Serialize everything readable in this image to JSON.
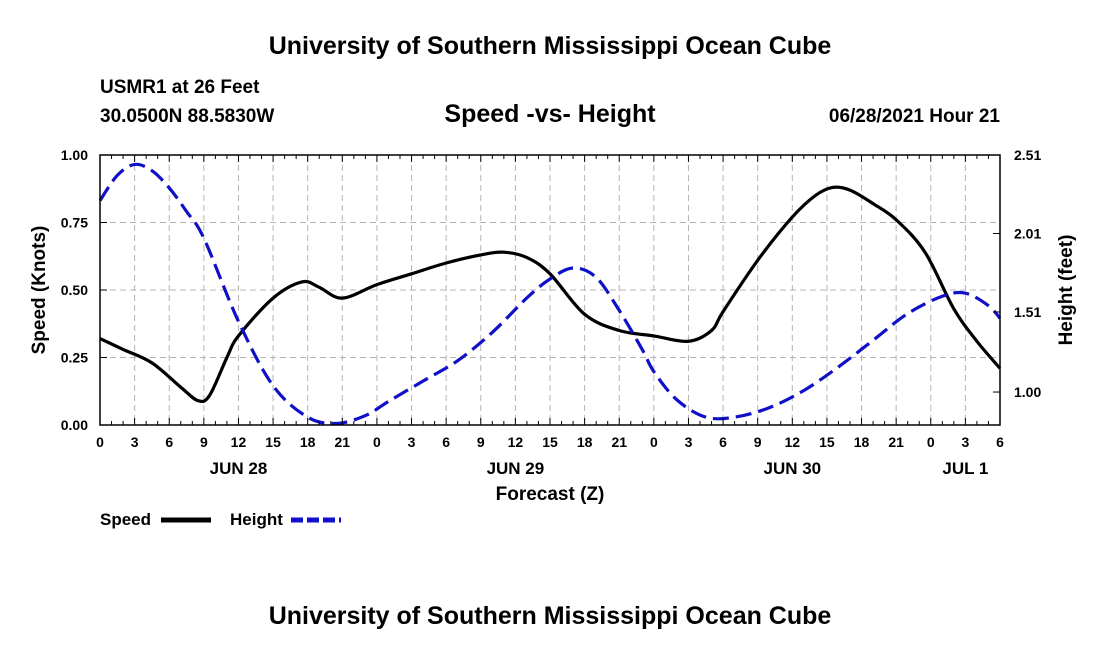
{
  "header": {
    "title": "University of Southern Mississippi Ocean Cube",
    "station": "USMR1 at 26 Feet",
    "coords": "30.0500N  88.5830W",
    "plot_title": "Speed -vs- Height",
    "datetime": "06/28/2021 Hour 21"
  },
  "footer": {
    "title": "University of Southern Mississippi Ocean Cube"
  },
  "colors": {
    "speed": "#000000",
    "height": "#1010c8",
    "grid": "#b4b4b4"
  },
  "chart_data": {
    "type": "line",
    "title": "Speed -vs- Height",
    "xlabel": "Forecast (Z)",
    "ylabel": "Speed (Knots)",
    "y2label": "Height (feet)",
    "x_unit": "hours from JUN 28 00Z",
    "xlim": [
      0,
      78
    ],
    "ylim": [
      0,
      1
    ],
    "y2lim": [
      0.79,
      2.51
    ],
    "x_ticks": [
      0,
      3,
      6,
      9,
      12,
      15,
      18,
      21,
      24,
      27,
      30,
      33,
      36,
      39,
      42,
      45,
      48,
      51,
      54,
      57,
      60,
      63,
      66,
      69,
      72,
      75,
      78
    ],
    "x_tick_labels": [
      "0",
      "3",
      "6",
      "9",
      "12",
      "15",
      "18",
      "21",
      "0",
      "3",
      "6",
      "9",
      "12",
      "15",
      "18",
      "21",
      "0",
      "3",
      "6",
      "9",
      "12",
      "15",
      "18",
      "21",
      "0",
      "3",
      "6"
    ],
    "y_ticks": [
      0,
      0.25,
      0.5,
      0.75,
      1
    ],
    "y_tick_labels": [
      "0.00",
      "0.25",
      "0.50",
      "0.75",
      "1.00"
    ],
    "y2_ticks": [
      1.0,
      1.51,
      2.01,
      2.51
    ],
    "y2_tick_labels": [
      "1.00",
      "1.51",
      "2.01",
      "2.51"
    ],
    "day_labels": [
      {
        "hour": 12,
        "label": "JUN 28"
      },
      {
        "hour": 36,
        "label": "JUN 29"
      },
      {
        "hour": 60,
        "label": "JUN 30"
      },
      {
        "hour": 75,
        "label": "JUL 1"
      }
    ],
    "grid": true,
    "legend_position": "bottom-left",
    "series": [
      {
        "name": "Speed",
        "axis": "left",
        "style": "solid",
        "x": [
          0,
          2,
          4.5,
          7,
          8.5,
          9.5,
          11,
          12,
          15,
          17.5,
          19,
          21,
          24,
          27,
          30,
          33,
          35,
          37,
          39,
          42,
          45,
          48,
          51,
          53,
          54,
          57,
          60,
          62,
          63.5,
          65,
          67,
          69,
          71.5,
          74,
          76,
          78
        ],
        "values": [
          0.32,
          0.28,
          0.23,
          0.14,
          0.09,
          0.11,
          0.25,
          0.33,
          0.47,
          0.53,
          0.51,
          0.47,
          0.52,
          0.56,
          0.6,
          0.63,
          0.64,
          0.62,
          0.56,
          0.41,
          0.35,
          0.33,
          0.31,
          0.35,
          0.42,
          0.61,
          0.77,
          0.85,
          0.88,
          0.87,
          0.82,
          0.76,
          0.64,
          0.43,
          0.31,
          0.21
        ]
      },
      {
        "name": "Height",
        "axis": "right",
        "style": "dashed",
        "x": [
          0,
          1.5,
          3,
          4.5,
          6,
          7.5,
          9,
          12,
          15,
          18,
          20.5,
          23,
          25,
          28,
          31,
          34,
          37,
          39,
          41,
          43,
          45,
          47,
          48,
          50,
          52.5,
          55,
          58,
          61,
          64,
          67,
          70,
          73,
          75,
          77,
          78
        ],
        "values": [
          2.22,
          2.38,
          2.45,
          2.41,
          2.3,
          2.15,
          1.98,
          1.45,
          1.04,
          0.84,
          0.8,
          0.85,
          0.94,
          1.07,
          1.2,
          1.38,
          1.6,
          1.72,
          1.79,
          1.73,
          1.52,
          1.27,
          1.13,
          0.95,
          0.84,
          0.84,
          0.9,
          1.01,
          1.16,
          1.33,
          1.5,
          1.61,
          1.63,
          1.55,
          1.47
        ]
      }
    ]
  }
}
